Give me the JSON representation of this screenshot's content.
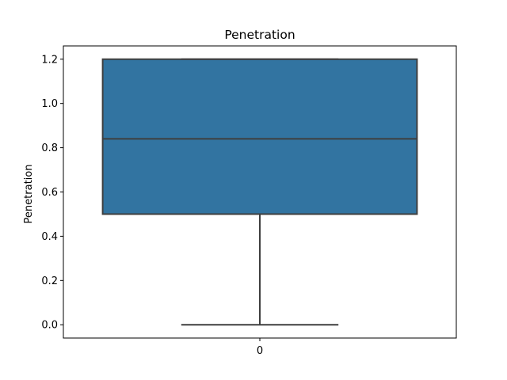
{
  "chart_data": {
    "type": "box",
    "title": "Penetration",
    "xlabel": "",
    "ylabel": "Penetration",
    "categories": [
      "0"
    ],
    "boxes": [
      {
        "category": "0",
        "whisker_low": 0.0,
        "q1": 0.5,
        "median": 0.84,
        "q3": 1.2,
        "whisker_high": 1.2
      }
    ],
    "ylim": [
      -0.06,
      1.26
    ],
    "yticks": [
      0.0,
      0.2,
      0.4,
      0.6,
      0.8,
      1.0,
      1.2
    ],
    "ytick_labels": [
      "0.0",
      "0.2",
      "0.4",
      "0.6",
      "0.8",
      "1.0",
      "1.2"
    ],
    "grid": false,
    "legend": "none",
    "colors": {
      "box_fill": "#3274a1",
      "box_edge": "#3f3f3f"
    }
  }
}
